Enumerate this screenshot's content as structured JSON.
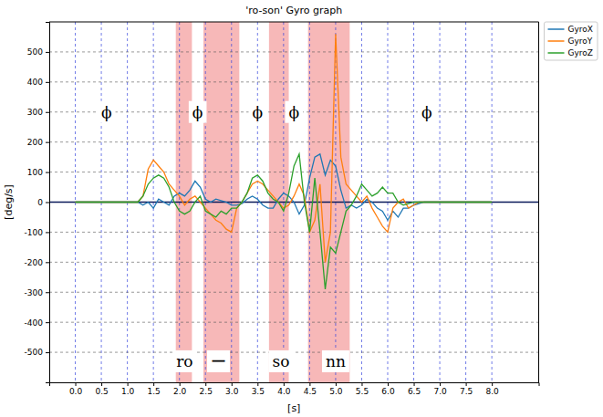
{
  "chart_data": {
    "type": "line",
    "title": "'ro-son'   Gyro graph",
    "x_label": "[s]",
    "y_label": "[deg/s]",
    "xlim": [
      -0.5,
      8.9
    ],
    "ylim": [
      -600,
      600
    ],
    "xticks": [
      {
        "value": 0,
        "label": "0.0"
      },
      {
        "value": 0.5,
        "label": "0.5"
      },
      {
        "value": 1,
        "label": "1.0"
      },
      {
        "value": 1.5,
        "label": "1.5"
      },
      {
        "value": 2,
        "label": "2.0"
      },
      {
        "value": 2.5,
        "label": "2.5"
      },
      {
        "value": 3,
        "label": "3.0"
      },
      {
        "value": 3.5,
        "label": "3.5"
      },
      {
        "value": 4,
        "label": "4.0"
      },
      {
        "value": 4.5,
        "label": "4.5"
      },
      {
        "value": 5,
        "label": "5.0"
      },
      {
        "value": 5.5,
        "label": "5.5"
      },
      {
        "value": 6,
        "label": "6.0"
      },
      {
        "value": 6.5,
        "label": "6.5"
      },
      {
        "value": 7,
        "label": "7.0"
      },
      {
        "value": 7.5,
        "label": "7.5"
      },
      {
        "value": 8,
        "label": "8.0"
      }
    ],
    "yticks": [
      -500,
      -400,
      -300,
      -200,
      -100,
      0,
      100,
      200,
      300,
      400,
      500
    ],
    "grid": true,
    "legend": "right",
    "x": [
      0,
      0.1,
      0.2,
      0.3,
      0.4,
      0.5,
      0.6,
      0.7,
      0.8,
      0.9,
      1,
      1.1,
      1.2,
      1.3,
      1.4,
      1.5,
      1.6,
      1.7,
      1.8,
      1.9,
      2,
      2.1,
      2.2,
      2.3,
      2.4,
      2.5,
      2.6,
      2.7,
      2.8,
      2.9,
      3,
      3.1,
      3.2,
      3.3,
      3.4,
      3.5,
      3.6,
      3.7,
      3.8,
      3.9,
      4,
      4.1,
      4.2,
      4.3,
      4.4,
      4.5,
      4.6,
      4.7,
      4.8,
      4.9,
      5,
      5.1,
      5.2,
      5.3,
      5.4,
      5.5,
      5.6,
      5.7,
      5.8,
      5.9,
      6,
      6.1,
      6.2,
      6.3,
      6.4,
      6.5,
      6.6,
      6.7,
      6.8,
      6.9,
      7,
      7.1,
      7.2,
      7.3,
      7.4,
      7.5,
      7.6,
      7.7,
      7.8,
      7.9,
      8
    ],
    "series": [
      {
        "name": "GyroX",
        "color": "#1f77b4",
        "line_style": "solid",
        "values": [
          0,
          0,
          0,
          0,
          0,
          0,
          0,
          0,
          0,
          0,
          0,
          0,
          0,
          -10,
          0,
          -20,
          10,
          0,
          -10,
          20,
          30,
          20,
          40,
          70,
          50,
          10,
          0,
          10,
          5,
          0,
          -10,
          -10,
          -5,
          10,
          20,
          10,
          -10,
          -20,
          -20,
          10,
          30,
          20,
          0,
          -40,
          -10,
          80,
          150,
          160,
          90,
          140,
          120,
          40,
          -20,
          -10,
          -20,
          -10,
          10,
          0,
          -20,
          -30,
          -60,
          -30,
          -50,
          -20,
          -20,
          -10,
          -5,
          0,
          0,
          0,
          0,
          0,
          0,
          0,
          0,
          0,
          0,
          0,
          0,
          0,
          0
        ]
      },
      {
        "name": "GyroY",
        "color": "#ff7f0e",
        "line_style": "solid",
        "values": [
          0,
          0,
          0,
          0,
          0,
          0,
          0,
          0,
          0,
          0,
          0,
          0,
          0,
          20,
          110,
          140,
          120,
          100,
          60,
          40,
          20,
          -10,
          10,
          20,
          0,
          -20,
          -40,
          -60,
          -70,
          -90,
          -100,
          -20,
          0,
          30,
          60,
          70,
          60,
          40,
          20,
          0,
          -20,
          -10,
          20,
          60,
          20,
          -100,
          -60,
          60,
          -200,
          -100,
          560,
          150,
          60,
          40,
          20,
          0,
          20,
          -20,
          -50,
          -80,
          -100,
          -20,
          0,
          10,
          -20,
          -10,
          0,
          0,
          0,
          0,
          0,
          0,
          0,
          0,
          0,
          0,
          0,
          0,
          0,
          0,
          0
        ]
      },
      {
        "name": "GyroZ",
        "color": "#2ca02c",
        "line_style": "solid",
        "values": [
          0,
          0,
          0,
          0,
          0,
          0,
          0,
          0,
          0,
          0,
          0,
          0,
          0,
          20,
          60,
          80,
          90,
          80,
          50,
          0,
          -30,
          -40,
          -30,
          0,
          20,
          -30,
          -40,
          -50,
          -30,
          -40,
          -20,
          -20,
          0,
          30,
          80,
          90,
          70,
          30,
          10,
          0,
          -30,
          30,
          120,
          160,
          0,
          -100,
          80,
          -100,
          -290,
          -150,
          -170,
          -100,
          -30,
          -10,
          20,
          60,
          40,
          20,
          30,
          50,
          30,
          30,
          0,
          -10,
          -5,
          0,
          0,
          0,
          0,
          0,
          0,
          0,
          0,
          0,
          0,
          0,
          0,
          0,
          0,
          0,
          0
        ]
      }
    ],
    "regions": [
      {
        "x0": 1.93,
        "x1": 2.24,
        "color": "#f4a0a0"
      },
      {
        "x0": 2.46,
        "x1": 3.15,
        "color": "#f4a0a0"
      },
      {
        "x0": 3.72,
        "x1": 4.1,
        "color": "#f4a0a0"
      },
      {
        "x0": 4.47,
        "x1": 5.27,
        "color": "#f4a0a0"
      }
    ],
    "annotations": [
      {
        "text": "ϕ",
        "x": 0.6,
        "y": 300
      },
      {
        "text": "ϕ",
        "x": 2.35,
        "y": 300
      },
      {
        "text": "ϕ",
        "x": 3.5,
        "y": 300
      },
      {
        "text": "ϕ",
        "x": 4.2,
        "y": 300
      },
      {
        "text": "ϕ",
        "x": 6.75,
        "y": 300
      },
      {
        "text": "ro",
        "x": 2.1,
        "y": -530
      },
      {
        "text": "ー",
        "x": 2.75,
        "y": -530
      },
      {
        "text": "so",
        "x": 3.95,
        "y": -530
      },
      {
        "text": "nn",
        "x": 5.0,
        "y": -530
      }
    ]
  }
}
